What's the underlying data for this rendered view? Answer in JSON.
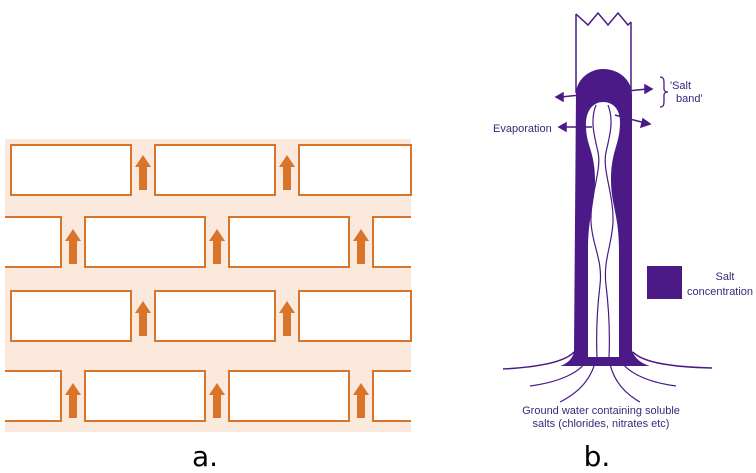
{
  "colors": {
    "brick_stroke": "#d9752a",
    "mortar_fill": "#fbe9dd",
    "arrow_fill": "#d9752a",
    "salt_purple": "#4b1a86",
    "label_text": "#3a2a7a",
    "caption_text": "#000000"
  },
  "panel_a": {
    "caption": "a."
  },
  "panel_b": {
    "caption": "b.",
    "labels": {
      "salt_band": "'Salt band'",
      "salt_band_line1": "'Salt",
      "salt_band_line2": "band'",
      "evaporation": "Evaporation",
      "salt_concentration_line1": "Salt",
      "salt_concentration_line2": "concentration",
      "ground_water_line1": "Ground water containing soluble",
      "ground_water_line2": "salts (chlorides, nitrates etc)"
    }
  }
}
